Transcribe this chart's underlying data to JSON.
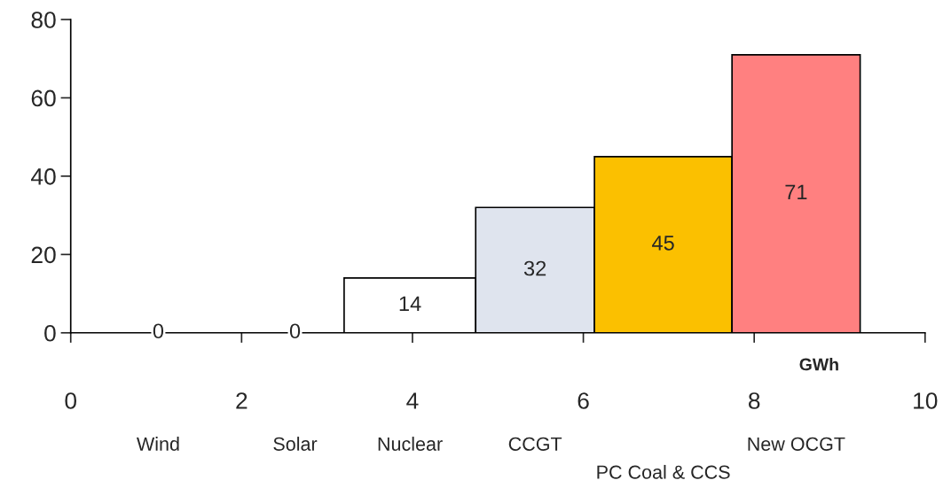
{
  "chart_data": {
    "type": "histogram",
    "bins": [
      0,
      2.05,
      3.2,
      4.74,
      6.13,
      7.74,
      9.24
    ],
    "values": [
      0,
      0,
      14,
      32,
      45,
      71
    ],
    "categories": [
      "Wind",
      "Solar",
      "Nuclear",
      "CCGT",
      "PC Coal & CCS",
      "New OCGT"
    ],
    "colors": [
      "#000000",
      "#000000",
      "#ffffff",
      "#dfe4ee",
      "#fbc000",
      "#ff8080"
    ],
    "data_labels": true,
    "xlabel": "GWh",
    "xlim": [
      0,
      10
    ],
    "xticks": [
      0,
      2,
      4,
      6,
      8,
      10
    ],
    "ylim": [
      0,
      80
    ],
    "yticks": [
      0,
      20,
      40,
      60,
      80
    ],
    "grid": false
  }
}
